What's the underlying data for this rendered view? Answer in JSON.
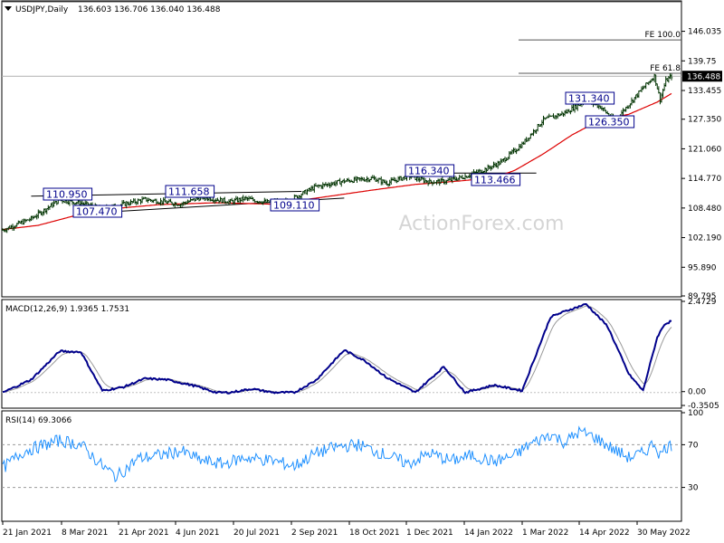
{
  "chart_data": [
    {
      "type": "ohlc",
      "title": "USDJPY,Daily",
      "ohlc_header": "136.603 136.706 136.040 136.488",
      "watermark": "ActionForex.com",
      "last_price": "136.488",
      "ylim": [
        89.795,
        152.3
      ],
      "y_ticks": [
        "146.035",
        "139.75",
        "133.455",
        "127.350",
        "121.060",
        "114.770",
        "108.480",
        "102.190",
        "95.890",
        "89.795"
      ],
      "x_ticks": [
        "21 Jan 2021",
        "8 Mar 2021",
        "21 Apr 2021",
        "4 Jun 2021",
        "20 Jul 2021",
        "2 Sep 2021",
        "18 Oct 2021",
        "1 Dec 2021",
        "14 Jan 2022",
        "1 Mar 2022",
        "14 Apr 2022",
        "30 May 2022"
      ],
      "price_anchors": [
        [
          0,
          103.8
        ],
        [
          20,
          106.2
        ],
        [
          40,
          110.2
        ],
        [
          55,
          109.5
        ],
        [
          70,
          108.3
        ],
        [
          100,
          110.3
        ],
        [
          125,
          109.3
        ],
        [
          140,
          110.8
        ],
        [
          160,
          109.8
        ],
        [
          170,
          110.5
        ],
        [
          185,
          109.7
        ],
        [
          200,
          109.9
        ],
        [
          220,
          113.0
        ],
        [
          240,
          114.2
        ],
        [
          260,
          114.8
        ],
        [
          270,
          113.8
        ],
        [
          285,
          115.3
        ],
        [
          300,
          114.0
        ],
        [
          312,
          114.2
        ],
        [
          325,
          115.2
        ],
        [
          340,
          116.8
        ],
        [
          350,
          118.2
        ],
        [
          365,
          122.0
        ],
        [
          380,
          127.2
        ],
        [
          395,
          128.7
        ],
        [
          410,
          131.3
        ],
        [
          420,
          130.0
        ],
        [
          430,
          127.0
        ],
        [
          440,
          130.5
        ],
        [
          450,
          134.0
        ],
        [
          458,
          136.5
        ],
        [
          462,
          131.5
        ],
        [
          466,
          135.5
        ],
        [
          470,
          136.5
        ]
      ],
      "ma_anchors": [
        [
          0,
          103.9
        ],
        [
          25,
          104.8
        ],
        [
          50,
          106.8
        ],
        [
          80,
          108.4
        ],
        [
          110,
          109.2
        ],
        [
          150,
          109.6
        ],
        [
          190,
          109.3
        ],
        [
          230,
          111.0
        ],
        [
          260,
          112.3
        ],
        [
          290,
          113.5
        ],
        [
          320,
          114.2
        ],
        [
          345,
          114.9
        ],
        [
          360,
          116.5
        ],
        [
          380,
          120.0
        ],
        [
          400,
          124.0
        ],
        [
          420,
          127.2
        ],
        [
          440,
          128.4
        ],
        [
          460,
          131.0
        ],
        [
          470,
          132.8
        ]
      ],
      "levels": [
        {
          "label": "FE 100.0",
          "value": 152.3
        },
        {
          "label": "FE 100.0",
          "value": 144.2
        },
        {
          "label": "FE 61.8",
          "value": 137.1
        }
      ],
      "annotations": [
        "110.950",
        "107.470",
        "111.658",
        "109.110",
        "116.340",
        "113.466",
        "131.340",
        "126.350"
      ],
      "trendlines": [
        {
          "name": "upper",
          "from": [
            20,
            111.0
          ],
          "to": [
            210,
            112.0
          ]
        },
        {
          "name": "lower",
          "from": [
            55,
            107.3
          ],
          "to": [
            240,
            110.6
          ]
        }
      ],
      "colors": {
        "price": "#003300",
        "ma": "#dd0000",
        "label": "#00008b",
        "level": "#555555"
      }
    },
    {
      "type": "line",
      "title": "MACD(12,26,9) 1.9365 1.7531",
      "ylim": [
        -0.3505,
        2.4729
      ],
      "y_ticks": [
        "2.4729",
        "0.00",
        "-0.3505"
      ],
      "macd_anchors": [
        [
          0,
          0.0
        ],
        [
          20,
          0.35
        ],
        [
          40,
          1.12
        ],
        [
          55,
          1.1
        ],
        [
          70,
          0.05
        ],
        [
          85,
          0.15
        ],
        [
          100,
          0.38
        ],
        [
          115,
          0.35
        ],
        [
          135,
          0.18
        ],
        [
          150,
          0.0
        ],
        [
          160,
          0.0
        ],
        [
          175,
          0.1
        ],
        [
          190,
          0.0
        ],
        [
          205,
          0.0
        ],
        [
          220,
          0.33
        ],
        [
          240,
          1.15
        ],
        [
          255,
          0.85
        ],
        [
          270,
          0.4
        ],
        [
          290,
          0.0
        ],
        [
          310,
          0.7
        ],
        [
          325,
          0.0
        ],
        [
          345,
          0.2
        ],
        [
          365,
          0.05
        ],
        [
          385,
          2.05
        ],
        [
          395,
          2.2
        ],
        [
          410,
          2.4
        ],
        [
          425,
          1.8
        ],
        [
          440,
          0.5
        ],
        [
          450,
          0.05
        ],
        [
          460,
          1.5
        ],
        [
          465,
          1.85
        ],
        [
          470,
          1.94
        ]
      ],
      "colors": {
        "macd": "#00008b",
        "signal": "#999999"
      }
    },
    {
      "type": "line",
      "title": "RSI(14) 69.3066",
      "ylim": [
        0,
        100
      ],
      "y_ticks": [
        "100",
        "70",
        "30"
      ],
      "rsi_anchors": [
        [
          0,
          48
        ],
        [
          15,
          64
        ],
        [
          40,
          74
        ],
        [
          55,
          70
        ],
        [
          70,
          50
        ],
        [
          80,
          40
        ],
        [
          95,
          57
        ],
        [
          110,
          60
        ],
        [
          125,
          64
        ],
        [
          140,
          55
        ],
        [
          155,
          52
        ],
        [
          170,
          58
        ],
        [
          190,
          55
        ],
        [
          205,
          50
        ],
        [
          220,
          62
        ],
        [
          235,
          68
        ],
        [
          250,
          70
        ],
        [
          270,
          60
        ],
        [
          285,
          52
        ],
        [
          300,
          62
        ],
        [
          315,
          55
        ],
        [
          330,
          60
        ],
        [
          345,
          54
        ],
        [
          360,
          60
        ],
        [
          370,
          70
        ],
        [
          385,
          80
        ],
        [
          395,
          72
        ],
        [
          405,
          82
        ],
        [
          415,
          78
        ],
        [
          430,
          65
        ],
        [
          440,
          58
        ],
        [
          450,
          62
        ],
        [
          458,
          72
        ],
        [
          462,
          60
        ],
        [
          466,
          68
        ],
        [
          470,
          69
        ]
      ],
      "colors": {
        "rsi": "#1e90ff",
        "level": "#999999"
      }
    }
  ]
}
